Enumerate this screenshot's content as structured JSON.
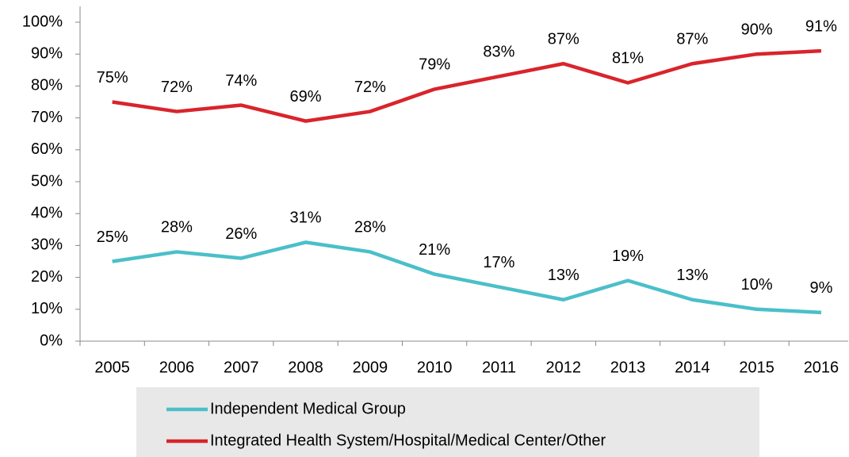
{
  "chart_data": {
    "type": "line",
    "categories": [
      "2005",
      "2006",
      "2007",
      "2008",
      "2009",
      "2010",
      "2011",
      "2012",
      "2013",
      "2014",
      "2015",
      "2016"
    ],
    "series": [
      {
        "name": "Independent Medical Group",
        "color": "#4bbfc9",
        "values": [
          25,
          28,
          26,
          31,
          28,
          21,
          17,
          13,
          19,
          13,
          10,
          9
        ],
        "value_labels": [
          "25%",
          "28%",
          "26%",
          "31%",
          "28%",
          "21%",
          "17%",
          "13%",
          "19%",
          "13%",
          "10%",
          "9%"
        ]
      },
      {
        "name": "Integrated Health System/Hospital/Medical Center/Other",
        "color": "#d9242b",
        "values": [
          75,
          72,
          74,
          69,
          72,
          79,
          83,
          87,
          81,
          87,
          90,
          91
        ],
        "value_labels": [
          "75%",
          "72%",
          "74%",
          "69%",
          "72%",
          "79%",
          "83%",
          "87%",
          "81%",
          "87%",
          "90%",
          "91%"
        ]
      }
    ],
    "ylim": [
      0,
      100
    ],
    "yticks": [
      {
        "value": 0,
        "label": "0%"
      },
      {
        "value": 10,
        "label": "10%"
      },
      {
        "value": 20,
        "label": "20%"
      },
      {
        "value": 30,
        "label": "30%"
      },
      {
        "value": 40,
        "label": "40%"
      },
      {
        "value": 50,
        "label": "50%"
      },
      {
        "value": 60,
        "label": "60%"
      },
      {
        "value": 70,
        "label": "70%"
      },
      {
        "value": 80,
        "label": "80%"
      },
      {
        "value": 90,
        "label": "90%"
      },
      {
        "value": 100,
        "label": "100%"
      }
    ],
    "grid": false,
    "legend": "bottom"
  }
}
